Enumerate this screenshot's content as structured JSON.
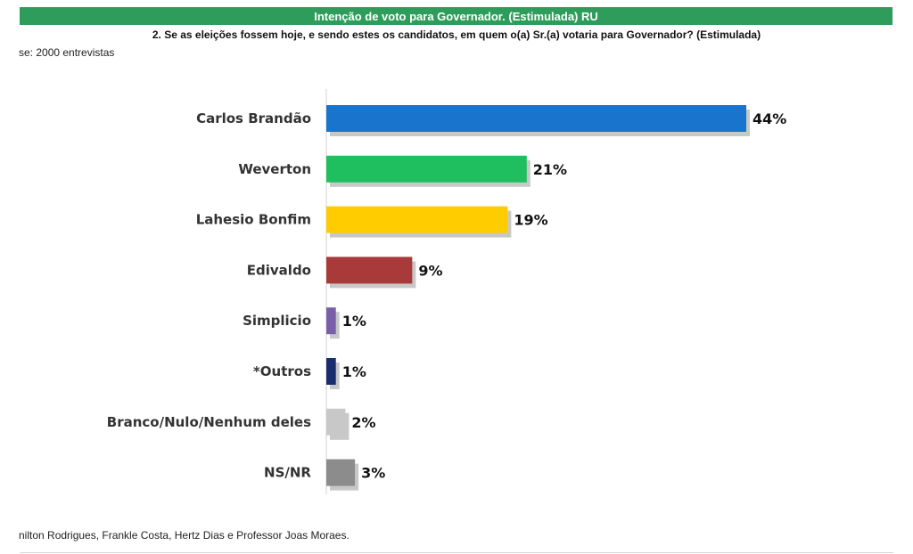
{
  "header": {
    "title": "Intenção de voto para Governador. (Estimulada) RU",
    "bar_color": "#2e9c5a"
  },
  "question": "2. Se as eleições fossem hoje, e sendo estes os candidatos, em quem o(a) Sr.(a) votaria para Governador? (Estimulada)",
  "base": "se: 2000 entrevistas",
  "footer": "nilton Rodrigues, Frankle Costa, Hertz Dias e Professor Joas Moraes.",
  "chart_data": {
    "type": "bar",
    "orientation": "horizontal",
    "categories": [
      "Carlos Brandão",
      "Weverton",
      "Lahesio Bonfim",
      "Edivaldo",
      "Simplicio",
      "*Outros",
      "Branco/Nulo/Nenhum deles",
      "NS/NR"
    ],
    "values": [
      44,
      21,
      19,
      9,
      1,
      1,
      2,
      3
    ],
    "value_labels": [
      "44%",
      "21%",
      "19%",
      "9%",
      "1%",
      "1%",
      "2%",
      "3%"
    ],
    "colors": [
      "#1874cd",
      "#1fbf5f",
      "#ffcc00",
      "#a83a3a",
      "#7a5ea8",
      "#1a2d6e",
      "#c8c8c8",
      "#8c8c8c"
    ],
    "xlim": [
      0,
      44
    ],
    "grid": false,
    "legend": "none"
  }
}
